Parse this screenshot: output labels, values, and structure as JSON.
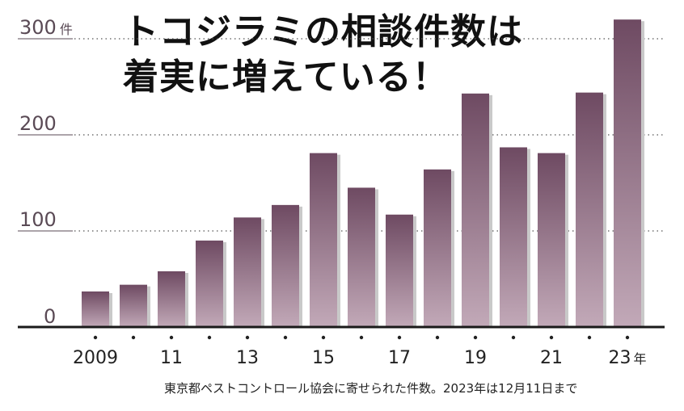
{
  "title_lines": [
    "トコジラミの相談件数は",
    "着実に増えている！"
  ],
  "note": "東京都ペストコントロール協会に寄せられた件数。2023年は12月11日まで",
  "colors": {
    "bar_top": "#6e4a62",
    "bar_bottom": "#c2a9b8",
    "bar_shadow": "#c9c9c9",
    "text": "#5a4a55",
    "axis": "#1a1a1a",
    "grid": "#555555"
  },
  "chart_data": {
    "type": "bar",
    "categories": [
      "2009",
      "2010",
      "2011",
      "2012",
      "2013",
      "2014",
      "2015",
      "2016",
      "2017",
      "2018",
      "2019",
      "2020",
      "2021",
      "2022",
      "2023"
    ],
    "x_tick_labels": [
      "2009",
      "",
      "11",
      "",
      "13",
      "",
      "15",
      "",
      "17",
      "",
      "19",
      "",
      "21",
      "",
      "23"
    ],
    "x_unit": "年",
    "values": [
      37,
      44,
      58,
      90,
      114,
      127,
      181,
      145,
      117,
      164,
      243,
      187,
      181,
      244,
      320
    ],
    "y_ticks": [
      0,
      100,
      200,
      300
    ],
    "y_unit": "件",
    "ylim": [
      0,
      330
    ],
    "grid": "dotted horizontal"
  }
}
